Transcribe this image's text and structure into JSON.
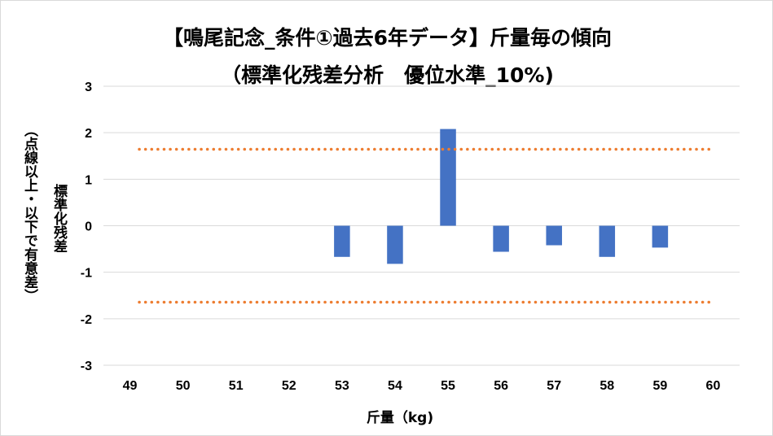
{
  "chart_data": {
    "type": "bar",
    "title": "【鳴尾記念_条件①過去6年データ】斤量毎の傾向",
    "subtitle": "（標準化残差分析　優位水準_10%)",
    "xlabel": "斤量（kg)",
    "ylabel": "標準化残差",
    "ylabel_sub": "（点線以上・以下で有意差）",
    "categories": [
      "49",
      "50",
      "51",
      "52",
      "53",
      "54",
      "55",
      "56",
      "57",
      "58",
      "59",
      "60"
    ],
    "values": [
      null,
      null,
      null,
      null,
      -0.67,
      -0.82,
      2.08,
      -0.56,
      -0.42,
      -0.67,
      -0.47,
      null
    ],
    "ylim": [
      -3,
      3
    ],
    "yticks": [
      "3",
      "2",
      "1",
      "0",
      "-1",
      "-2",
      "-3"
    ],
    "threshold_lines": [
      1.645,
      -1.645
    ],
    "grid": true,
    "legend": "none",
    "colors": {
      "bar": "#4472c4",
      "threshold": "#ed7d31",
      "grid": "#d9d9d9"
    }
  }
}
